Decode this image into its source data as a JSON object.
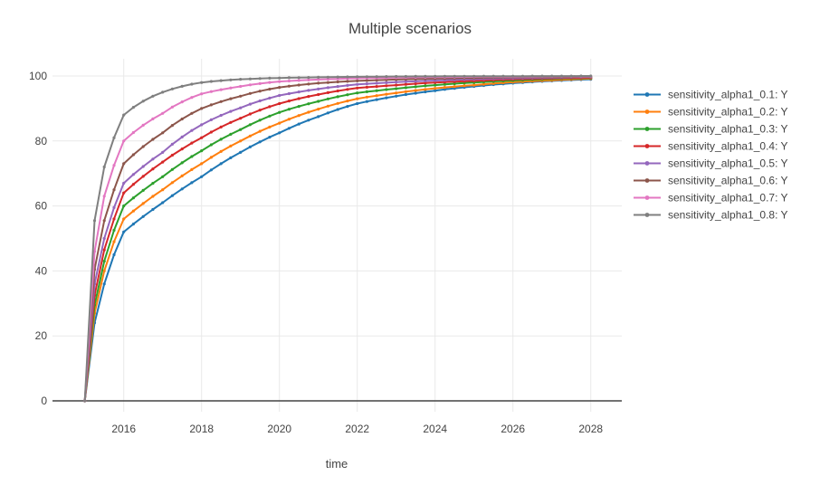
{
  "chart_data": {
    "type": "line",
    "mode": "lines+markers",
    "title": "Multiple scenarios",
    "xlabel": "time",
    "ylabel": "",
    "x_ticks": [
      "2016",
      "2018",
      "2020",
      "2022",
      "2024",
      "2026",
      "2028"
    ],
    "x_tick_values": [
      2016,
      2018,
      2020,
      2022,
      2024,
      2026,
      2028
    ],
    "y_ticks": [
      "0",
      "20",
      "40",
      "60",
      "80",
      "100"
    ],
    "y_tick_values": [
      0,
      20,
      40,
      60,
      80,
      100
    ],
    "x_range": [
      2014.17,
      2028.82
    ],
    "y_range": [
      -3.3,
      105.3
    ],
    "grid": true,
    "legend_position": "right",
    "x": [
      2015,
      2015.25,
      2015.5,
      2015.75,
      2016,
      2017,
      2018,
      2019,
      2020,
      2021,
      2022,
      2023,
      2024,
      2025,
      2026,
      2027,
      2028
    ],
    "series": [
      {
        "label": "sensitivity_alpha1_0.1: Y",
        "color": "#1f77b4",
        "values": [
          0,
          24,
          36,
          45,
          52,
          61,
          69,
          76.5,
          82.5,
          87.5,
          91.5,
          93.8,
          95.5,
          96.8,
          97.8,
          98.5,
          99.0
        ]
      },
      {
        "label": "sensitivity_alpha1_0.2: Y",
        "color": "#ff7f0e",
        "values": [
          0,
          27,
          40,
          49,
          56,
          65,
          73,
          80,
          85.5,
          89.8,
          93,
          94.8,
          96.2,
          97.2,
          98.1,
          98.7,
          99.2
        ]
      },
      {
        "label": "sensitivity_alpha1_0.3: Y",
        "color": "#2ca02c",
        "values": [
          0,
          29.5,
          43,
          52.5,
          60,
          69,
          77,
          83.5,
          88.8,
          92.2,
          94.8,
          96.1,
          97.2,
          98,
          98.6,
          99.1,
          99.4
        ]
      },
      {
        "label": "sensitivity_alpha1_0.4: Y",
        "color": "#d62728",
        "values": [
          0,
          32.5,
          46.5,
          56,
          64,
          73.5,
          81,
          87,
          91.5,
          94.3,
          96.3,
          97.2,
          98,
          98.5,
          99,
          99.3,
          99.5
        ]
      },
      {
        "label": "sensitivity_alpha1_0.5: Y",
        "color": "#9467bd",
        "values": [
          0,
          36,
          50,
          59.5,
          67,
          76.5,
          85,
          90.2,
          94,
          96,
          97.4,
          98.1,
          98.6,
          99,
          99.3,
          99.5,
          99.7
        ]
      },
      {
        "label": "sensitivity_alpha1_0.6: Y",
        "color": "#8c564b",
        "values": [
          0,
          40.5,
          55.5,
          65,
          73,
          82.5,
          90,
          93.8,
          96.5,
          97.8,
          98.5,
          98.9,
          99.2,
          99.4,
          99.6,
          99.7,
          99.8
        ]
      },
      {
        "label": "sensitivity_alpha1_0.7: Y",
        "color": "#e377c2",
        "values": [
          0,
          46,
          63,
          72.5,
          80,
          88.5,
          94.5,
          96.8,
          98.3,
          98.9,
          99.3,
          99.5,
          99.65,
          99.75,
          99.8,
          99.87,
          99.9
        ]
      },
      {
        "label": "sensitivity_alpha1_0.8: Y",
        "color": "#7f7f7f",
        "values": [
          0,
          55.5,
          72,
          81,
          88,
          95,
          98,
          99,
          99.4,
          99.6,
          99.75,
          99.85,
          99.9,
          99.93,
          99.95,
          99.97,
          100
        ]
      }
    ],
    "style": {
      "grid_color": "#E9E9E9",
      "zeroline_color": "#444444",
      "text_color": "#444444",
      "background": "#ffffff"
    }
  }
}
